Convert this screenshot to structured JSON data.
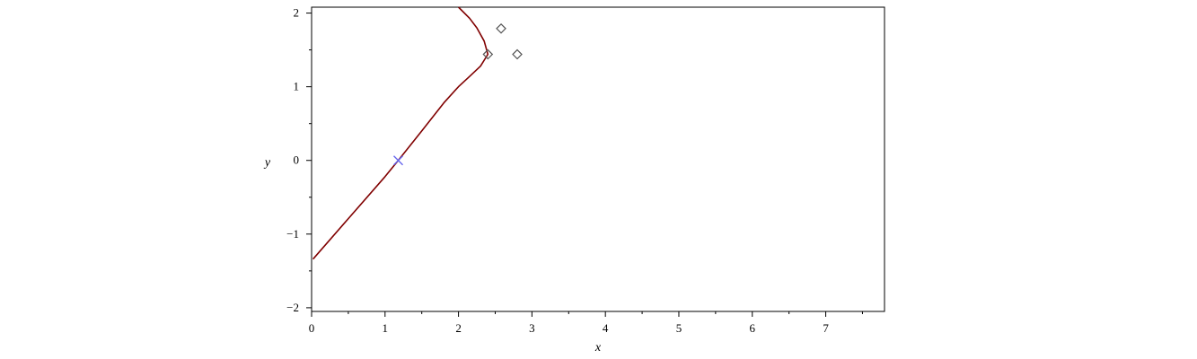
{
  "chart_data": {
    "type": "line",
    "title": "",
    "xlabel": "x",
    "ylabel": "y",
    "xlim": [
      0,
      7.8
    ],
    "ylim": [
      -2.05,
      2.08
    ],
    "x_ticks": [
      {
        "value": 0,
        "label": "0"
      },
      {
        "value": 1,
        "label": "1"
      },
      {
        "value": 2,
        "label": "2"
      },
      {
        "value": 3,
        "label": "3"
      },
      {
        "value": 4,
        "label": "4"
      },
      {
        "value": 5,
        "label": "5"
      },
      {
        "value": 6,
        "label": "6"
      },
      {
        "value": 7,
        "label": "7"
      }
    ],
    "y_ticks": [
      {
        "value": -2,
        "label": "−2"
      },
      {
        "value": -1,
        "label": "−1"
      },
      {
        "value": 0,
        "label": "0"
      },
      {
        "value": 1,
        "label": "1"
      },
      {
        "value": 2,
        "label": "2"
      }
    ],
    "grid": false,
    "series": [
      {
        "kind": "line",
        "color": "#800000",
        "points": [
          [
            0.02,
            -1.34
          ],
          [
            0.5,
            -0.79
          ],
          [
            1.0,
            -0.22
          ],
          [
            1.18,
            0.0
          ],
          [
            1.5,
            0.4
          ],
          [
            1.8,
            0.78
          ],
          [
            2.0,
            1.0
          ],
          [
            2.15,
            1.14
          ],
          [
            2.3,
            1.28
          ],
          [
            2.4,
            1.44
          ],
          [
            2.35,
            1.62
          ],
          [
            2.25,
            1.8
          ],
          [
            2.15,
            1.93
          ],
          [
            2.0,
            2.08
          ]
        ]
      },
      {
        "kind": "markers",
        "marker": "diamond",
        "color": "#555555",
        "points": [
          [
            2.4,
            1.44
          ],
          [
            2.58,
            1.79
          ],
          [
            2.8,
            1.44
          ]
        ]
      },
      {
        "kind": "markers",
        "marker": "x",
        "color": "#6666ee",
        "points": [
          [
            1.18,
            0.0
          ]
        ]
      }
    ]
  }
}
